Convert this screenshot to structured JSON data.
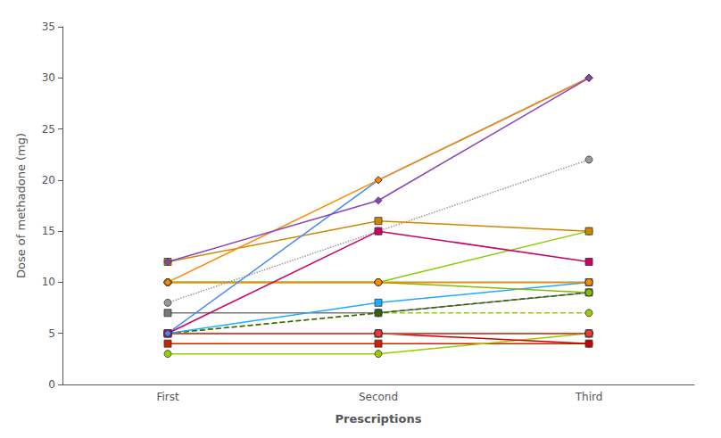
{
  "chart_data": {
    "type": "line",
    "categories": [
      "First",
      "Second",
      "Third"
    ],
    "xlabel": "Prescriptions",
    "ylabel": "Dose of methadone (mg)",
    "ylim": [
      0,
      35
    ],
    "yticks": [
      0,
      5,
      10,
      15,
      20,
      25,
      30,
      35
    ],
    "grid": false,
    "series": [
      {
        "color": "#3399FF",
        "marker": "square",
        "line_style": "solid",
        "values": [
          5,
          5,
          5
        ]
      },
      {
        "color": "#FF8C00",
        "marker": "triangle",
        "line_style": "solid",
        "values": [
          5,
          5,
          5
        ]
      },
      {
        "color": "#CC2200",
        "marker": "square",
        "line_style": "solid",
        "values": [
          4,
          4,
          4
        ]
      },
      {
        "color": "#99CC00",
        "marker": "circle",
        "line_style": "solid",
        "values": [
          3,
          3,
          5
        ]
      },
      {
        "color": "#CC6600",
        "marker": "circle",
        "line_style": "solid",
        "values": [
          5,
          5,
          5
        ]
      },
      {
        "color": "#009999",
        "marker": "circle",
        "line_style": "solid",
        "values": [
          5,
          5,
          5
        ]
      },
      {
        "color": "#CC0033",
        "marker": "circle",
        "line_style": "solid",
        "values": [
          5,
          5,
          5
        ]
      },
      {
        "color": "#CC44AA",
        "marker": "circle",
        "line_style": "solid",
        "values": [
          5,
          5,
          5
        ]
      },
      {
        "color": "#009900",
        "marker": "circle",
        "line_style": "solid",
        "values": [
          5,
          5,
          5
        ]
      },
      {
        "color": "#CC0000",
        "marker": "circle",
        "line_style": "solid",
        "values": [
          5,
          5,
          4
        ]
      },
      {
        "color": "#FF6600",
        "marker": "triangle",
        "line_style": "solid",
        "values": [
          5,
          5,
          5
        ]
      },
      {
        "color": "#6633CC",
        "marker": "circle",
        "line_style": "solid",
        "values": [
          5,
          5,
          5
        ]
      },
      {
        "color": "#00CCCC",
        "marker": "circle",
        "line_style": "solid",
        "values": [
          5,
          5,
          5
        ]
      },
      {
        "color": "#99CC33",
        "marker": "circle",
        "line_style": "solid",
        "values": [
          5,
          5,
          5
        ]
      },
      {
        "color": "#FF3333",
        "marker": "circle",
        "line_style": "solid",
        "values": [
          5,
          5,
          5
        ]
      },
      {
        "color": "#777777",
        "marker": "square",
        "line_style": "solid",
        "values": [
          7,
          7,
          9
        ]
      },
      {
        "color": "#99CC00",
        "marker": "circle",
        "line_style": "dashed",
        "values": [
          5,
          7,
          7
        ]
      },
      {
        "color": "#336600",
        "marker": "circle",
        "line_style": "dashed",
        "values": [
          5,
          7,
          9
        ]
      },
      {
        "color": "#22AAFF",
        "marker": "square",
        "line_style": "solid",
        "values": [
          5,
          8,
          10
        ]
      },
      {
        "color": "#88BB00",
        "marker": "circle",
        "line_style": "solid",
        "values": [
          10,
          10,
          9
        ]
      },
      {
        "color": "#009933",
        "marker": "circle",
        "line_style": "solid",
        "values": [
          10,
          10,
          10
        ]
      },
      {
        "color": "#88CC00",
        "marker": "circle",
        "line_style": "solid",
        "values": [
          10,
          10,
          15
        ]
      },
      {
        "color": "#FF8800",
        "marker": "circle",
        "line_style": "solid",
        "values": [
          10,
          10,
          10
        ]
      },
      {
        "color": "#999999",
        "marker": "circle",
        "line_style": "dotted",
        "values": [
          8,
          15,
          22
        ]
      },
      {
        "color": "#CC8800",
        "marker": "square",
        "line_style": "solid",
        "values": [
          12,
          16,
          15
        ]
      },
      {
        "color": "#CC0066",
        "marker": "square",
        "line_style": "solid",
        "values": [
          5,
          15,
          12
        ]
      },
      {
        "color": "#4488FF",
        "marker": "diamond",
        "line_style": "solid",
        "values": [
          5,
          20,
          30
        ]
      },
      {
        "color": "#FF8800",
        "marker": "diamond",
        "line_style": "solid",
        "values": [
          10,
          20,
          30
        ]
      },
      {
        "color": "#8844BB",
        "marker": "diamond",
        "line_style": "solid",
        "values": [
          12,
          18,
          30
        ]
      }
    ]
  }
}
